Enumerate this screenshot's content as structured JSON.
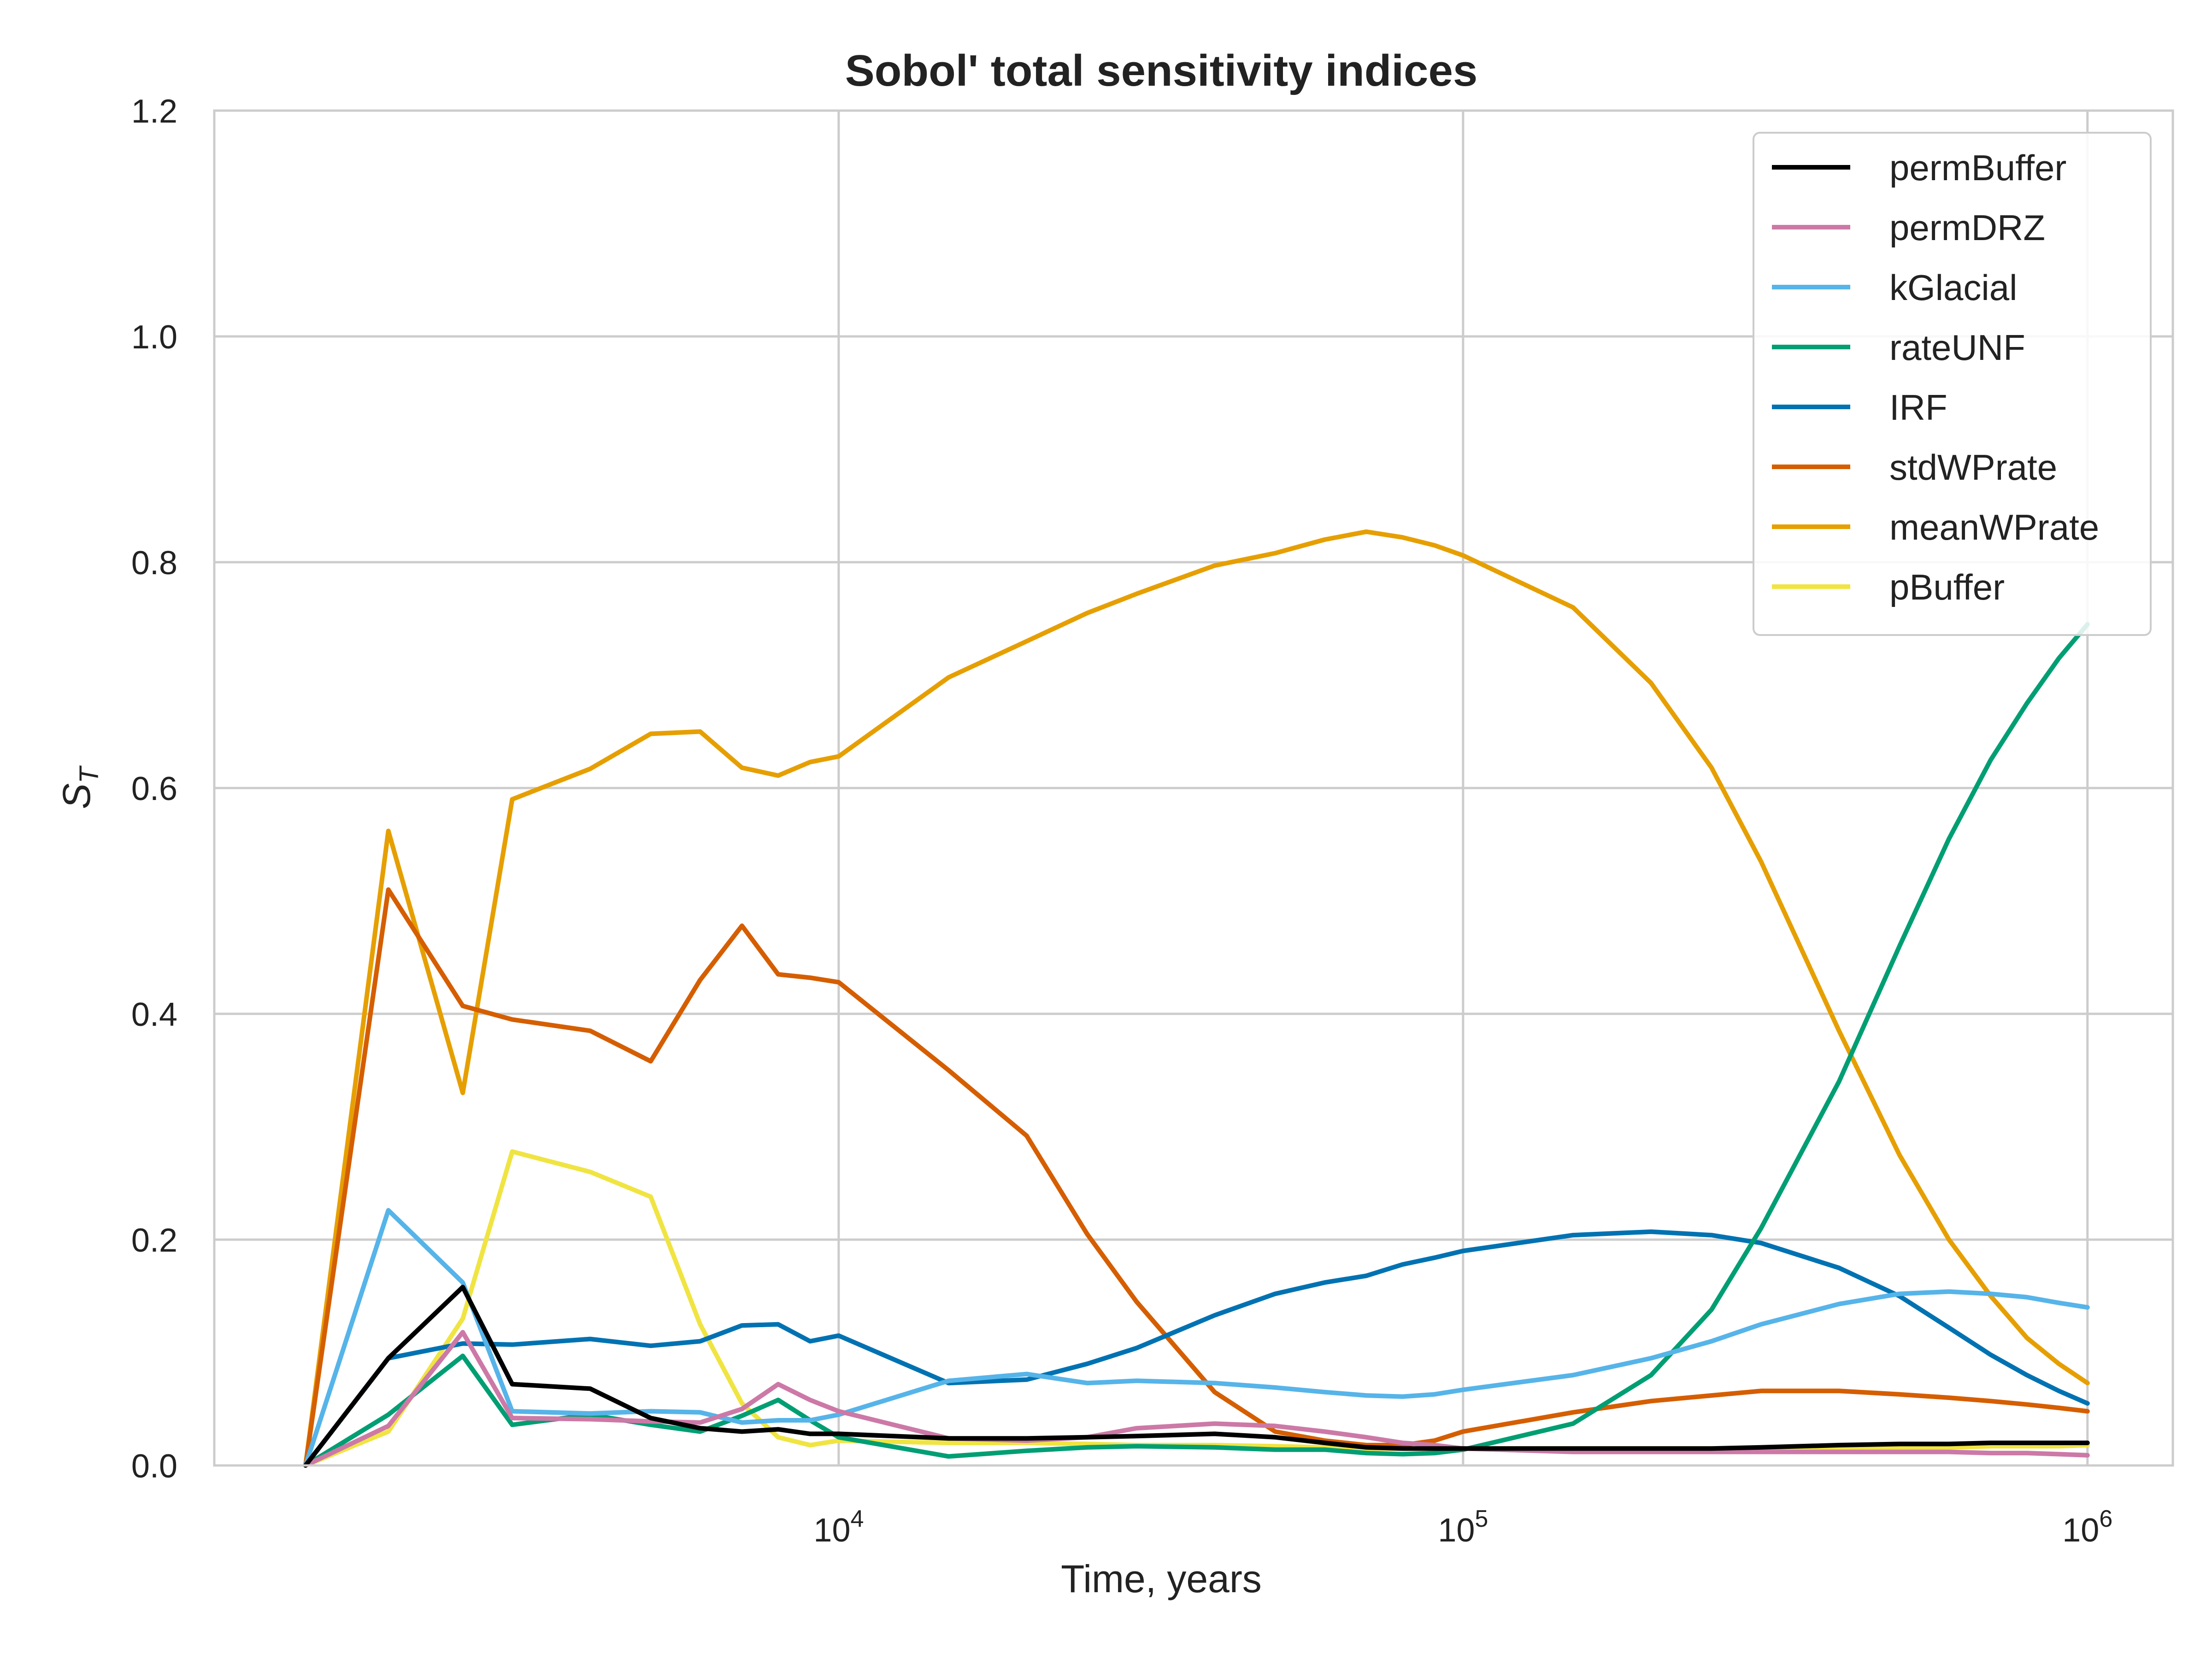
{
  "chart_data": {
    "type": "line",
    "title": "Sobol' total sensitivity indices",
    "xlabel": "Time, years",
    "ylabel_main": "S",
    "ylabel_sub": "T",
    "x_scale": "log",
    "xlim": [
      1000,
      1370000
    ],
    "ylim": [
      0,
      1.2
    ],
    "grid": true,
    "legend_position": "top-right",
    "y_ticks": [
      {
        "value": 0.0,
        "label": "0.0"
      },
      {
        "value": 0.2,
        "label": "0.2"
      },
      {
        "value": 0.4,
        "label": "0.4"
      },
      {
        "value": 0.6,
        "label": "0.6"
      },
      {
        "value": 0.8,
        "label": "0.8"
      },
      {
        "value": 1.0,
        "label": "1.0"
      },
      {
        "value": 1.2,
        "label": "1.2"
      }
    ],
    "x_ticks": [
      {
        "value": 10000,
        "base": "10",
        "exp": "4"
      },
      {
        "value": 100000,
        "base": "10",
        "exp": "5"
      },
      {
        "value": 1000000,
        "base": "10",
        "exp": "6"
      }
    ],
    "x": [
      1400,
      1900,
      2500,
      3000,
      4000,
      5000,
      6000,
      7000,
      8000,
      9000,
      10000,
      15000,
      20000,
      25000,
      30000,
      40000,
      50000,
      60000,
      70000,
      80000,
      90000,
      100000,
      150000,
      200000,
      250000,
      300000,
      400000,
      500000,
      600000,
      700000,
      800000,
      900000,
      1000000
    ],
    "series": [
      {
        "name": "permBuffer",
        "color": "#000000",
        "values": [
          0.0,
          0.095,
          0.158,
          0.072,
          0.068,
          0.042,
          0.033,
          0.03,
          0.032,
          0.028,
          0.028,
          0.024,
          0.024,
          0.025,
          0.026,
          0.028,
          0.025,
          0.02,
          0.016,
          0.015,
          0.015,
          0.015,
          0.015,
          0.015,
          0.015,
          0.016,
          0.018,
          0.019,
          0.019,
          0.02,
          0.02,
          0.02,
          0.02
        ]
      },
      {
        "name": "permDRZ",
        "color": "#cc79a7",
        "values": [
          0.0,
          0.035,
          0.118,
          0.042,
          0.041,
          0.039,
          0.038,
          0.05,
          0.072,
          0.058,
          0.048,
          0.024,
          0.022,
          0.025,
          0.033,
          0.037,
          0.035,
          0.03,
          0.025,
          0.02,
          0.018,
          0.015,
          0.012,
          0.012,
          0.012,
          0.012,
          0.012,
          0.012,
          0.012,
          0.011,
          0.011,
          0.01,
          0.009
        ]
      },
      {
        "name": "kGlacial",
        "color": "#56b4e9",
        "values": [
          0.0,
          0.226,
          0.162,
          0.048,
          0.046,
          0.048,
          0.047,
          0.038,
          0.04,
          0.04,
          0.045,
          0.075,
          0.081,
          0.073,
          0.075,
          0.073,
          0.069,
          0.065,
          0.062,
          0.061,
          0.063,
          0.067,
          0.08,
          0.095,
          0.11,
          0.125,
          0.143,
          0.152,
          0.154,
          0.152,
          0.149,
          0.144,
          0.14
        ]
      },
      {
        "name": "rateUNF",
        "color": "#009e73",
        "values": [
          0.0,
          0.045,
          0.097,
          0.036,
          0.045,
          0.036,
          0.03,
          0.044,
          0.058,
          0.04,
          0.025,
          0.008,
          0.013,
          0.016,
          0.017,
          0.016,
          0.014,
          0.014,
          0.011,
          0.01,
          0.011,
          0.014,
          0.037,
          0.08,
          0.138,
          0.21,
          0.34,
          0.46,
          0.555,
          0.625,
          0.675,
          0.715,
          0.745
        ]
      },
      {
        "name": "IRF",
        "color": "#0072b2",
        "values": [
          0.0,
          0.095,
          0.108,
          0.107,
          0.112,
          0.106,
          0.11,
          0.124,
          0.125,
          0.11,
          0.115,
          0.073,
          0.076,
          0.09,
          0.104,
          0.133,
          0.152,
          0.162,
          0.168,
          0.178,
          0.184,
          0.19,
          0.204,
          0.207,
          0.204,
          0.197,
          0.175,
          0.15,
          0.122,
          0.098,
          0.08,
          0.066,
          0.055
        ]
      },
      {
        "name": "stdWPrate",
        "color": "#d55e00",
        "values": [
          0.0,
          0.51,
          0.407,
          0.395,
          0.385,
          0.358,
          0.43,
          0.478,
          0.435,
          0.432,
          0.428,
          0.35,
          0.292,
          0.205,
          0.145,
          0.065,
          0.03,
          0.022,
          0.018,
          0.018,
          0.022,
          0.03,
          0.047,
          0.057,
          0.062,
          0.066,
          0.066,
          0.063,
          0.06,
          0.057,
          0.054,
          0.051,
          0.048
        ]
      },
      {
        "name": "meanWPrate",
        "color": "#e69f00",
        "values": [
          0.0,
          0.562,
          0.33,
          0.59,
          0.617,
          0.648,
          0.65,
          0.618,
          0.611,
          0.623,
          0.628,
          0.698,
          0.73,
          0.755,
          0.772,
          0.797,
          0.808,
          0.82,
          0.827,
          0.822,
          0.815,
          0.806,
          0.76,
          0.693,
          0.618,
          0.535,
          0.385,
          0.275,
          0.2,
          0.15,
          0.113,
          0.09,
          0.073
        ]
      },
      {
        "name": "pBuffer",
        "color": "#f0e442",
        "values": [
          0.0,
          0.03,
          0.13,
          0.278,
          0.26,
          0.238,
          0.125,
          0.055,
          0.025,
          0.018,
          0.022,
          0.02,
          0.02,
          0.019,
          0.018,
          0.018,
          0.017,
          0.016,
          0.015,
          0.015,
          0.015,
          0.015,
          0.015,
          0.015,
          0.015,
          0.015,
          0.016,
          0.016,
          0.016,
          0.017,
          0.017,
          0.017,
          0.018
        ]
      }
    ]
  }
}
